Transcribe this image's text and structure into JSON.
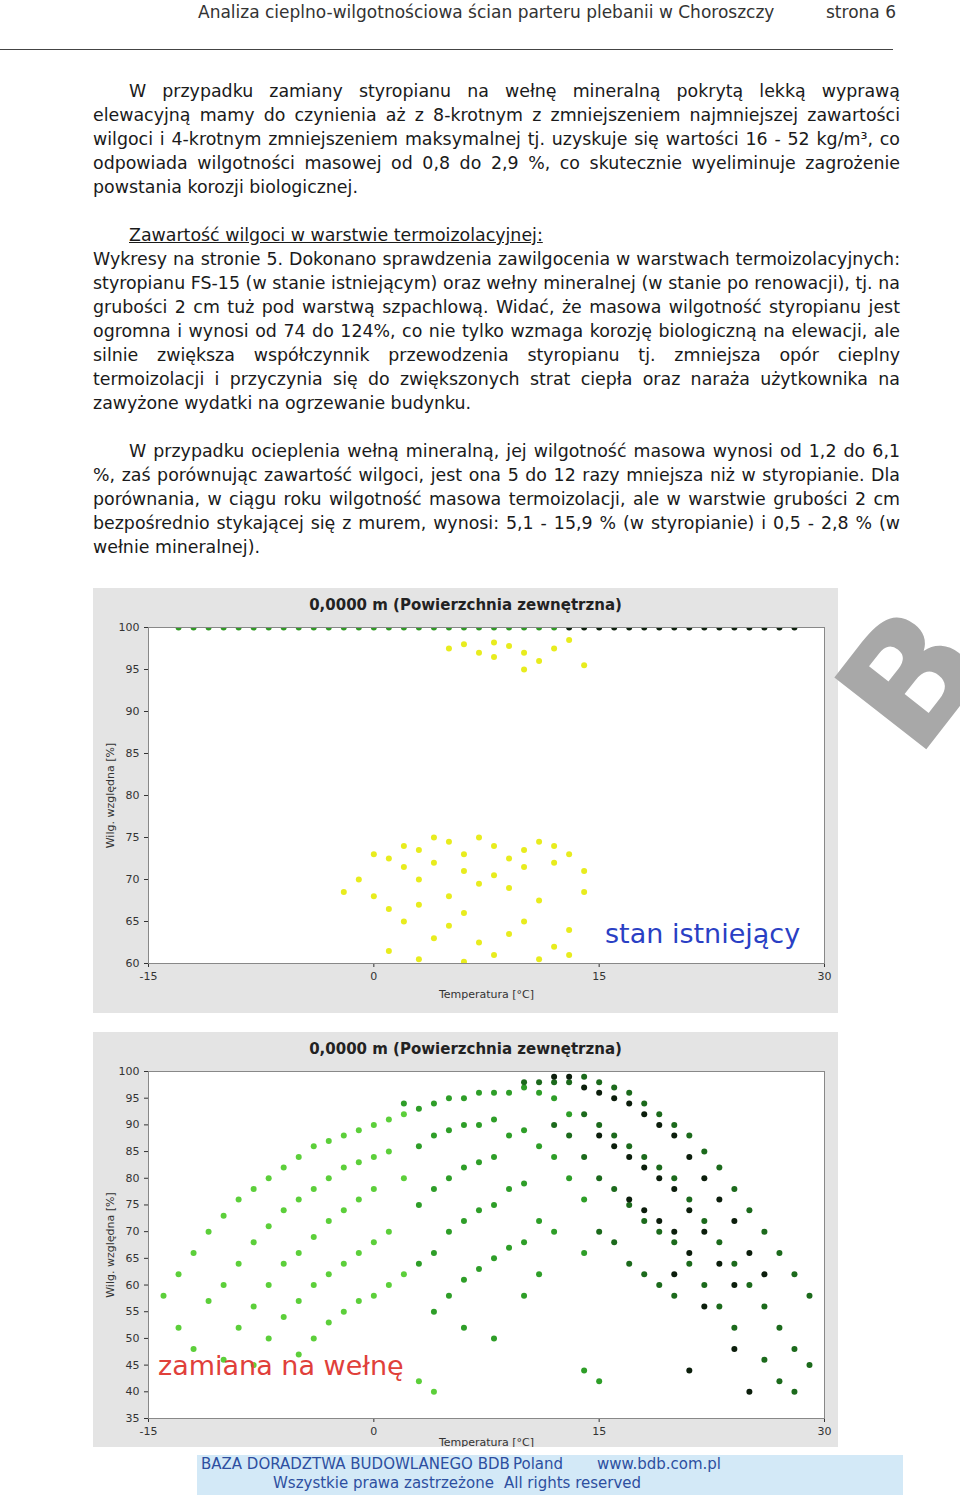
{
  "header": {
    "title": "Analiza cieplno-wilgotnościowa ścian parteru plebanii w Choroszczy",
    "page": "strona 6"
  },
  "paragraphs": [
    {
      "text": "W przypadku zamiany styropianu na wełnę mineralną pokrytą lekką wyprawą elewacyjną mamy do czynienia aż z 8-krotnym z zmniejszeniem najmniejszej zawartości wilgoci i 4-krotnym zmniejszeniem maksymalnej tj. uzyskuje się wartości 16 - 52 kg/m³, co odpowiada wilgotności masowej od 0,8 do 2,9 %, co skutecznie wyeliminuje zagrożenie powstania korozji biologicznej."
    },
    {
      "heading": "Zawartość wilgoci w warstwie termoizolacyjnej:",
      "text": "Wykresy na stronie 5. Dokonano sprawdzenia zawilgocenia w warstwach termoizolacyjnych: styropianu FS-15 (w stanie istniejącym) oraz wełny mineralnej (w stanie po renowacji), tj. na grubości 2 cm tuż pod warstwą szpachlową. Widać, że masowa wilgotność styropianu jest ogromna i wynosi od 74 do 124%, co nie tylko wzmaga korozję biologiczną na elewacji, ale silnie zwiększa współczynnik przewodzenia styropianu tj. zmniejsza opór cieplny termoizolacji i przyczynia się do zwiększonych strat ciepła oraz naraża użytkownika na zawyżone wydatki na ogrzewanie budynku."
    },
    {
      "text": "W przypadku ocieplenia wełną mineralną, jej wilgotność masowa wynosi od 1,2 do 6,1 %, zaś porównując zawartość wilgoci, jest ona 5 do 12 razy mniejsza niż w styropianie. Dla porównania, w ciągu roku wilgotność masowa termoizolacji, ale w warstwie grubości 2 cm bezpośrednio stykającej się z murem, wynosi: 5,1 - 15,9 % (w styropianie) i 0,5 - 2,8 % (w wełnie mineralnej)."
    }
  ],
  "chart_data": [
    {
      "type": "scatter",
      "title": "0,0000 m (Powierzchnia zewnętrzna)",
      "xlabel": "Temperatura [°C]",
      "ylabel": "Wilg. względna [%]",
      "annotation": "stan istniejący",
      "grid": false,
      "xlim": [
        -15,
        30
      ],
      "xticks": [
        -15,
        0,
        15,
        30
      ],
      "ylim": [
        60,
        100
      ],
      "yticks": [
        60,
        65,
        70,
        75,
        80,
        85,
        90,
        95,
        100
      ],
      "series": [
        {
          "color": "#2f9a24",
          "marker": "circle",
          "x": [
            -13,
            -12,
            -11,
            -10,
            -9,
            -8,
            -7,
            -6,
            -5,
            -4,
            -3,
            -2,
            -1,
            0,
            1,
            2,
            3,
            4,
            5,
            6,
            7,
            8,
            9,
            10,
            11,
            12
          ],
          "values": [
            100,
            100,
            100,
            100,
            100,
            100,
            100,
            100,
            100,
            100,
            100,
            100,
            100,
            100,
            100,
            100,
            100,
            100,
            100,
            100,
            100,
            100,
            100,
            100,
            100,
            100
          ]
        },
        {
          "color": "#0b1f0b",
          "marker": "circle",
          "x": [
            13,
            14,
            15,
            16,
            17,
            18,
            19,
            20,
            21,
            22,
            23,
            24,
            25,
            26,
            27,
            28
          ],
          "values": [
            100,
            100,
            100,
            100,
            100,
            100,
            100,
            100,
            100,
            100,
            100,
            100,
            100,
            100,
            100,
            100
          ]
        },
        {
          "color": "#e8ec1e",
          "marker": "circle",
          "x": [
            5,
            6,
            7,
            8,
            9,
            10,
            11,
            12,
            13,
            14,
            10,
            8,
            0,
            1,
            2,
            3,
            4,
            5,
            6,
            7,
            8,
            9,
            10,
            11,
            12,
            13,
            14,
            2,
            4,
            6,
            8,
            10,
            12,
            3,
            7,
            0,
            1,
            2,
            3,
            4,
            5,
            6,
            7,
            8,
            9,
            10,
            11,
            12,
            13,
            14,
            5,
            9,
            1,
            3,
            11,
            6,
            13,
            -1,
            -2
          ],
          "values": [
            97.5,
            98,
            97,
            96.5,
            97.8,
            97,
            96,
            97.5,
            98.5,
            95.5,
            95,
            98.2,
            73,
            72.5,
            74,
            73.5,
            72,
            74.5,
            73,
            75,
            74,
            72.5,
            73.5,
            74.5,
            72,
            73,
            71,
            71.5,
            75,
            71,
            70.5,
            71.5,
            74,
            70,
            69.5,
            68,
            66.5,
            65,
            67,
            63,
            64.5,
            66,
            62.5,
            61,
            63.5,
            65,
            67.5,
            62,
            64,
            68.5,
            68,
            69,
            61.5,
            60.5,
            60.5,
            60.2,
            61,
            70,
            68.5
          ]
        }
      ]
    },
    {
      "type": "scatter",
      "title": "0,0000 m (Powierzchnia zewnętrzna)",
      "xlabel": "Temperatura [°C]",
      "ylabel": "Wilg. względna [%]",
      "annotation": "zamiana na wełnę",
      "grid": false,
      "xlim": [
        -15,
        30
      ],
      "xticks": [
        -15,
        0,
        15,
        30
      ],
      "ylim": [
        35,
        100
      ],
      "yticks": [
        35,
        40,
        45,
        50,
        55,
        60,
        65,
        70,
        75,
        80,
        85,
        90,
        95,
        100
      ],
      "series": [
        {
          "color": "#5ccf3a",
          "marker": "circle",
          "x": [
            -14,
            -13,
            -13,
            -12,
            -12,
            -11,
            -11,
            -10,
            -10,
            -10,
            -9,
            -9,
            -9,
            -8,
            -8,
            -8,
            -8,
            -7,
            -7,
            -7,
            -7,
            -6,
            -6,
            -6,
            -6,
            -5,
            -5,
            -5,
            -5,
            -5,
            -4,
            -4,
            -4,
            -4,
            -4,
            -3,
            -3,
            -3,
            -3,
            -3,
            -2,
            -2,
            -2,
            -2,
            -2,
            -1,
            -1,
            -1,
            -1,
            -1,
            0,
            0,
            0,
            0,
            0,
            1,
            1,
            1,
            1,
            2,
            2,
            2,
            3,
            4
          ],
          "values": [
            58,
            62,
            52,
            66,
            48,
            70,
            57,
            73,
            60,
            46,
            76,
            64,
            52,
            78,
            68,
            56,
            45,
            80,
            71,
            60,
            50,
            82,
            74,
            64,
            54,
            84,
            76,
            66,
            57,
            47,
            86,
            78,
            69,
            60,
            50,
            87,
            80,
            72,
            62,
            53,
            88,
            82,
            74,
            64,
            55,
            89,
            83,
            76,
            66,
            57,
            90,
            84,
            78,
            68,
            58,
            91,
            85,
            70,
            60,
            92,
            80,
            62,
            42,
            40
          ]
        },
        {
          "color": "#2e9e28",
          "marker": "circle",
          "x": [
            2,
            3,
            3,
            3,
            3,
            4,
            4,
            4,
            4,
            4,
            5,
            5,
            5,
            5,
            5,
            6,
            6,
            6,
            6,
            6,
            6,
            7,
            7,
            7,
            7,
            7,
            8,
            8,
            8,
            8,
            8,
            8,
            9,
            9,
            9,
            9,
            10,
            10,
            10,
            10,
            10,
            11,
            11,
            11,
            11,
            12,
            12,
            12,
            13,
            13,
            14,
            14,
            14,
            15
          ],
          "values": [
            94,
            93,
            86,
            75,
            64,
            94,
            88,
            78,
            66,
            55,
            95,
            89,
            80,
            70,
            58,
            95,
            90,
            82,
            72,
            61,
            52,
            96,
            90,
            83,
            74,
            63,
            96,
            91,
            84,
            75,
            65,
            50,
            96,
            88,
            78,
            67,
            97,
            89,
            79,
            68,
            58,
            96,
            86,
            72,
            62,
            95,
            84,
            70,
            92,
            80,
            76,
            66,
            44,
            42
          ]
        },
        {
          "color": "#1c6a1c",
          "marker": "circle",
          "x": [
            10,
            11,
            12,
            12,
            13,
            13,
            14,
            14,
            14,
            15,
            15,
            15,
            15,
            16,
            16,
            16,
            16,
            17,
            17,
            17,
            17,
            18,
            18,
            18,
            18,
            19,
            19,
            19,
            19,
            20,
            20,
            20,
            20,
            21,
            21,
            21,
            22,
            22,
            22,
            23,
            23,
            23,
            24,
            24,
            24,
            25,
            25,
            26,
            26,
            26,
            27,
            27,
            27,
            28,
            28,
            28,
            29,
            29
          ],
          "values": [
            98,
            98,
            98,
            90,
            98,
            88,
            99,
            92,
            84,
            98,
            90,
            80,
            70,
            97,
            88,
            78,
            68,
            96,
            86,
            75,
            64,
            94,
            84,
            72,
            62,
            92,
            82,
            70,
            60,
            90,
            80,
            68,
            58,
            88,
            76,
            64,
            85,
            72,
            60,
            82,
            68,
            56,
            78,
            64,
            52,
            74,
            60,
            70,
            56,
            46,
            66,
            52,
            42,
            62,
            48,
            40,
            58,
            45
          ]
        },
        {
          "color": "#0c1e0c",
          "marker": "circle",
          "x": [
            12,
            13,
            14,
            15,
            15,
            16,
            16,
            17,
            17,
            17,
            18,
            18,
            18,
            19,
            19,
            19,
            20,
            20,
            20,
            21,
            21,
            21,
            22,
            22,
            23,
            23,
            24,
            24,
            25,
            26,
            20,
            22,
            24,
            25,
            21
          ],
          "values": [
            99,
            99,
            97,
            96,
            88,
            95,
            86,
            94,
            84,
            76,
            92,
            82,
            74,
            90,
            80,
            72,
            88,
            78,
            70,
            84,
            74,
            66,
            80,
            70,
            76,
            64,
            72,
            60,
            66,
            62,
            62,
            56,
            48,
            40,
            44
          ]
        }
      ]
    }
  ],
  "watermark": "B",
  "footer": {
    "line1": [
      "BAZA DORADZTWA BUDOWLANEGO BDB",
      "Poland",
      "www.bdb.com.pl"
    ],
    "line2": [
      "Wszystkie prawa zastrzeżone",
      "All rights reserved"
    ]
  }
}
